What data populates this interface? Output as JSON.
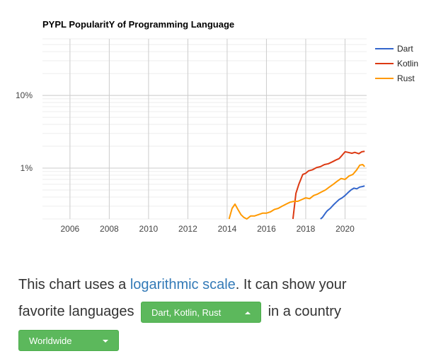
{
  "chart_data": {
    "type": "line",
    "title": "PYPL PopularitY of Programming Language",
    "xlabel": "",
    "ylabel": "",
    "y_scale": "log",
    "xlim": [
      2004.6,
      2021.1
    ],
    "ylim": [
      0.2,
      60
    ],
    "x_ticks": [
      2006,
      2008,
      2010,
      2012,
      2014,
      2016,
      2018,
      2020
    ],
    "x_tick_labels": [
      "2006",
      "2008",
      "2010",
      "2012",
      "2014",
      "2016",
      "2018",
      "2020"
    ],
    "y_ticks": [
      1,
      10
    ],
    "y_tick_labels": [
      "1%",
      "10%"
    ],
    "grid": true,
    "legend_position": "right",
    "series": [
      {
        "name": "Dart",
        "color": "#3366cc",
        "x": [
          2018.75,
          2018.85,
          2019.0,
          2019.1,
          2019.25,
          2019.4,
          2019.55,
          2019.7,
          2019.85,
          2020.0,
          2020.15,
          2020.3,
          2020.45,
          2020.6,
          2020.75,
          2020.9,
          2021.0
        ],
        "y": [
          0.2,
          0.21,
          0.24,
          0.26,
          0.28,
          0.31,
          0.34,
          0.37,
          0.39,
          0.42,
          0.46,
          0.5,
          0.53,
          0.52,
          0.55,
          0.56,
          0.57
        ]
      },
      {
        "name": "Kotlin",
        "color": "#dc3912",
        "x": [
          2017.35,
          2017.5,
          2017.65,
          2017.85,
          2018.0,
          2018.15,
          2018.35,
          2018.55,
          2018.75,
          2018.95,
          2019.15,
          2019.35,
          2019.55,
          2019.7,
          2019.85,
          2020.0,
          2020.15,
          2020.35,
          2020.5,
          2020.7,
          2020.85,
          2021.0
        ],
        "y": [
          0.2,
          0.45,
          0.6,
          0.82,
          0.85,
          0.92,
          0.95,
          1.02,
          1.05,
          1.12,
          1.15,
          1.22,
          1.3,
          1.35,
          1.5,
          1.68,
          1.65,
          1.6,
          1.65,
          1.58,
          1.68,
          1.7
        ]
      },
      {
        "name": "Rust",
        "color": "#ff9900",
        "x": [
          2014.1,
          2014.25,
          2014.4,
          2014.55,
          2014.7,
          2014.85,
          2015.0,
          2015.2,
          2015.4,
          2015.6,
          2015.8,
          2016.0,
          2016.2,
          2016.4,
          2016.6,
          2016.8,
          2017.0,
          2017.2,
          2017.4,
          2017.6,
          2017.8,
          2018.0,
          2018.2,
          2018.4,
          2018.6,
          2018.8,
          2019.0,
          2019.2,
          2019.4,
          2019.6,
          2019.8,
          2020.0,
          2020.2,
          2020.4,
          2020.6,
          2020.75,
          2020.9,
          2021.0
        ],
        "y": [
          0.2,
          0.28,
          0.32,
          0.27,
          0.23,
          0.21,
          0.2,
          0.22,
          0.22,
          0.23,
          0.24,
          0.24,
          0.25,
          0.27,
          0.28,
          0.3,
          0.32,
          0.34,
          0.35,
          0.35,
          0.37,
          0.39,
          0.38,
          0.42,
          0.44,
          0.47,
          0.5,
          0.55,
          0.6,
          0.66,
          0.72,
          0.7,
          0.78,
          0.82,
          0.95,
          1.1,
          1.12,
          1.05
        ]
      }
    ]
  },
  "caption": {
    "text_before_link": "This chart uses a ",
    "link_text": "logarithmic scale",
    "text_after_link": ". It can show your",
    "text_favorite": "favorite languages",
    "text_country": "in a country"
  },
  "language_select": {
    "selected": "Dart, Kotlin, Rust"
  },
  "country_select": {
    "selected": "Worldwide"
  }
}
